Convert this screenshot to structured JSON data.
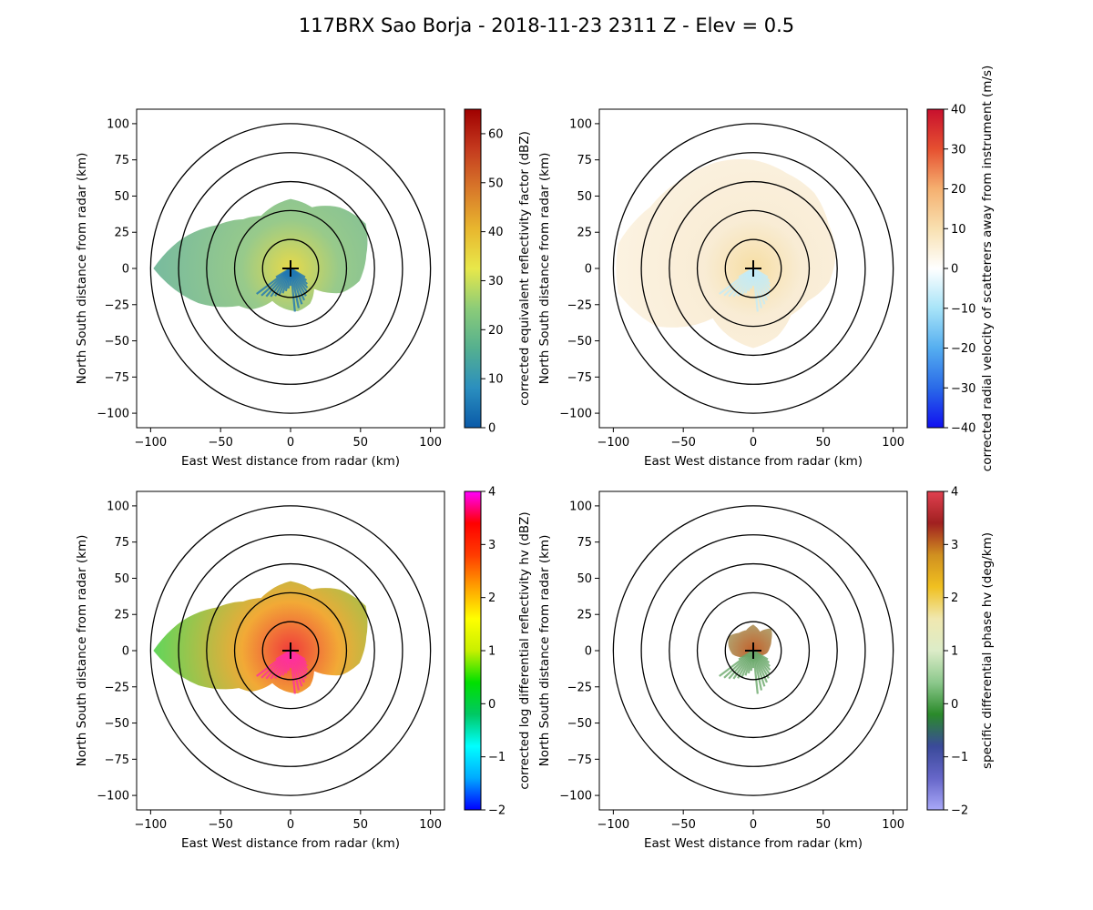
{
  "figure": {
    "title": "117BRX Sao Borja - 2018-11-23 2311 Z -  Elev = 0.5"
  },
  "chart_data": [
    {
      "type": "ppi",
      "id": "reflectivity",
      "xlabel": "East West distance from radar (km)",
      "ylabel": "North South distance from radar (km)",
      "xlim": [
        -110,
        110
      ],
      "ylim": [
        -110,
        110
      ],
      "xticks": [
        -100,
        -50,
        0,
        50,
        100
      ],
      "yticks": [
        -100,
        -75,
        -50,
        -25,
        0,
        25,
        50,
        75,
        100
      ],
      "range_rings_km": [
        20,
        40,
        60,
        80,
        100
      ],
      "colorbar": {
        "label": "corrected equivalent reflectivity factor (dBZ)",
        "min": 0,
        "max": 65,
        "ticks": [
          0,
          10,
          20,
          30,
          40,
          50,
          60
        ],
        "colors": [
          "#0a5aa8",
          "#2b8fbf",
          "#55b08f",
          "#8ccc78",
          "#e8e84a",
          "#e8b62e",
          "#d8782a",
          "#c43a1e",
          "#a00000"
        ]
      },
      "echo": {
        "color_core": "#e6d840",
        "color_mid": "#8cc47e",
        "color_edge": "#5fae8e",
        "south_color": "#1f77b4",
        "radius_by_bearing": [
          [
            0,
            48
          ],
          [
            20,
            45
          ],
          [
            40,
            55
          ],
          [
            60,
            62
          ],
          [
            80,
            55
          ],
          [
            100,
            50
          ],
          [
            115,
            40
          ],
          [
            130,
            22
          ],
          [
            150,
            28
          ],
          [
            170,
            30
          ],
          [
            190,
            28
          ],
          [
            210,
            26
          ],
          [
            225,
            40
          ],
          [
            235,
            45
          ],
          [
            250,
            70
          ],
          [
            270,
            98
          ],
          [
            285,
            80
          ],
          [
            300,
            60
          ],
          [
            315,
            48
          ],
          [
            330,
            42
          ],
          [
            345,
            45
          ],
          [
            360,
            48
          ]
        ]
      }
    },
    {
      "type": "ppi",
      "id": "velocity",
      "xlabel": "East West distance from radar (km)",
      "ylabel": "North South distance from radar (km)",
      "xlim": [
        -110,
        110
      ],
      "ylim": [
        -110,
        110
      ],
      "xticks": [
        -100,
        -50,
        0,
        50,
        100
      ],
      "yticks": [
        -100,
        -75,
        -50,
        -25,
        0,
        25,
        50,
        75,
        100
      ],
      "range_rings_km": [
        20,
        40,
        60,
        80,
        100
      ],
      "colorbar": {
        "label": "corrected radial velocity of scatterers away from instrument (m/s)",
        "min": -40,
        "max": 40,
        "ticks": [
          -40,
          -30,
          -20,
          -10,
          0,
          10,
          20,
          30,
          40
        ],
        "colors": [
          "#1010f0",
          "#2a6ae8",
          "#55aef0",
          "#a8e4f8",
          "#ffffff",
          "#f8e0b0",
          "#f5b070",
          "#e65030",
          "#c8102e"
        ]
      },
      "echo": {
        "color_core": "#f6dc9e",
        "color_mid": "#f8ead0",
        "color_edge": "#fbf0dc",
        "south_color": "#c4ecf8",
        "radius_by_bearing": [
          [
            0,
            75
          ],
          [
            20,
            70
          ],
          [
            40,
            68
          ],
          [
            60,
            62
          ],
          [
            80,
            60
          ],
          [
            100,
            55
          ],
          [
            120,
            45
          ],
          [
            140,
            42
          ],
          [
            160,
            50
          ],
          [
            180,
            55
          ],
          [
            200,
            50
          ],
          [
            220,
            45
          ],
          [
            240,
            80
          ],
          [
            260,
            98
          ],
          [
            280,
            98
          ],
          [
            300,
            85
          ],
          [
            320,
            80
          ],
          [
            340,
            78
          ],
          [
            360,
            75
          ]
        ]
      }
    },
    {
      "type": "ppi",
      "id": "zdr",
      "xlabel": "East West distance from radar (km)",
      "ylabel": "North South distance from radar (km)",
      "xlim": [
        -110,
        110
      ],
      "ylim": [
        -110,
        110
      ],
      "xticks": [
        -100,
        -50,
        0,
        50,
        100
      ],
      "yticks": [
        -100,
        -75,
        -50,
        -25,
        0,
        25,
        50,
        75,
        100
      ],
      "range_rings_km": [
        20,
        40,
        60,
        80,
        100
      ],
      "colorbar": {
        "label": "corrected log differential reflectivity hv (dBZ)",
        "min": -2,
        "max": 4,
        "ticks": [
          -2,
          -1,
          0,
          1,
          2,
          3,
          4
        ],
        "colors": [
          "#0000ff",
          "#00aaff",
          "#00ffff",
          "#00c864",
          "#00e000",
          "#c8f000",
          "#ffff00",
          "#ffa000",
          "#ff3c00",
          "#ff0000",
          "#ff00ff"
        ]
      },
      "echo": {
        "color_core": "#f03030",
        "color_mid": "#f0a020",
        "color_edge": "#40d040",
        "south_color": "#ff30a0",
        "radius_by_bearing": [
          [
            0,
            48
          ],
          [
            20,
            45
          ],
          [
            40,
            55
          ],
          [
            60,
            62
          ],
          [
            80,
            55
          ],
          [
            100,
            50
          ],
          [
            115,
            40
          ],
          [
            130,
            22
          ],
          [
            150,
            28
          ],
          [
            170,
            30
          ],
          [
            190,
            28
          ],
          [
            210,
            26
          ],
          [
            225,
            40
          ],
          [
            235,
            45
          ],
          [
            250,
            70
          ],
          [
            270,
            98
          ],
          [
            285,
            80
          ],
          [
            300,
            60
          ],
          [
            315,
            48
          ],
          [
            330,
            42
          ],
          [
            345,
            45
          ],
          [
            360,
            48
          ]
        ]
      }
    },
    {
      "type": "ppi",
      "id": "kdp",
      "xlabel": "East West distance from radar (km)",
      "ylabel": "North South distance from radar (km)",
      "xlim": [
        -110,
        110
      ],
      "ylim": [
        -110,
        110
      ],
      "xticks": [
        -100,
        -50,
        0,
        50,
        100
      ],
      "yticks": [
        -100,
        -75,
        -50,
        -25,
        0,
        25,
        50,
        75,
        100
      ],
      "range_rings_km": [
        20,
        40,
        60,
        80,
        100
      ],
      "colorbar": {
        "label": "specific differential phase hv (deg/km)",
        "min": -2,
        "max": 4,
        "ticks": [
          -2,
          -1,
          0,
          1,
          2,
          3,
          4
        ],
        "colors": [
          "#a8a8f8",
          "#6666c8",
          "#3a4a9a",
          "#2a8a2a",
          "#8cc88c",
          "#dcecc8",
          "#f0e8b0",
          "#f0c020",
          "#d09020",
          "#a02020",
          "#e04050"
        ]
      },
      "echo": {
        "color_core": "#c05820",
        "color_mid": "#9cc890",
        "color_edge": "#b8dcb0",
        "south_color": "#6aa86a",
        "radius_by_bearing": [
          [
            0,
            18
          ],
          [
            20,
            14
          ],
          [
            40,
            20
          ],
          [
            60,
            15
          ],
          [
            80,
            12
          ],
          [
            100,
            10
          ],
          [
            130,
            5
          ],
          [
            180,
            4
          ],
          [
            230,
            6
          ],
          [
            260,
            15
          ],
          [
            280,
            18
          ],
          [
            300,
            20
          ],
          [
            320,
            16
          ],
          [
            340,
            15
          ],
          [
            360,
            18
          ]
        ]
      }
    }
  ]
}
